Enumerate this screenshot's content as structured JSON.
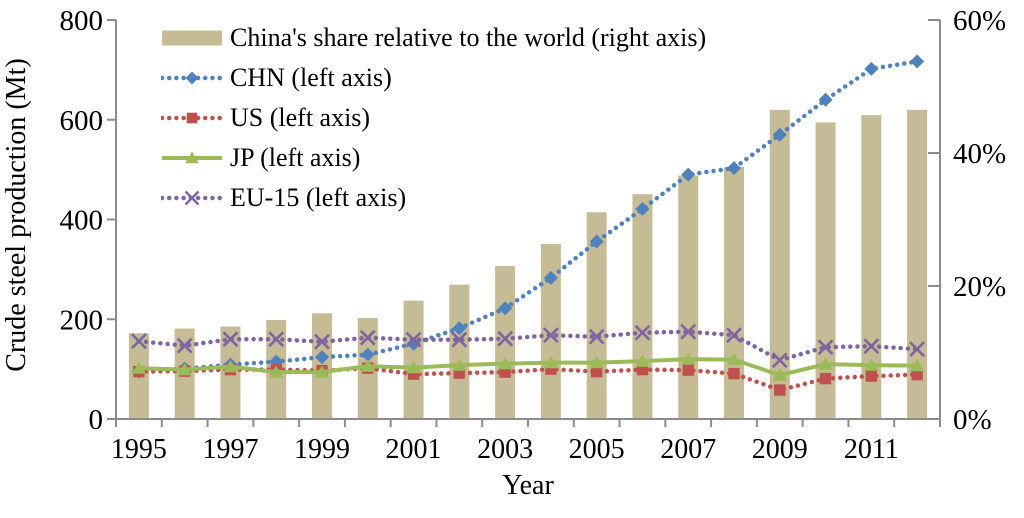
{
  "chart_data": {
    "type": "combo-bar-line",
    "title": "",
    "xlabel": "Year",
    "categories": [
      "1995",
      "1996",
      "1997",
      "1998",
      "1999",
      "2000",
      "2001",
      "2002",
      "2003",
      "2004",
      "2005",
      "2006",
      "2007",
      "2008",
      "2009",
      "2010",
      "2011",
      "2012"
    ],
    "x_label_every": 2,
    "left_axis": {
      "label": "Crude steel production (Mt)",
      "range": [
        0,
        800
      ],
      "ticks": [
        {
          "v": 0,
          "label": "0"
        },
        {
          "v": 200,
          "label": "200"
        },
        {
          "v": 400,
          "label": "400"
        },
        {
          "v": 600,
          "label": "600"
        },
        {
          "v": 800,
          "label": "800"
        }
      ]
    },
    "right_axis": {
      "label": "",
      "range": [
        0,
        60
      ],
      "ticks": [
        {
          "v": 0,
          "label": "0%"
        },
        {
          "v": 20,
          "label": "20%"
        },
        {
          "v": 40,
          "label": "40%"
        },
        {
          "v": 60,
          "label": "60%"
        }
      ]
    },
    "bar_series": {
      "name": "China's share relative to the world (right axis)",
      "axis": "right",
      "color": "#C5BC95",
      "values": [
        12.9,
        13.6,
        13.9,
        14.9,
        15.9,
        15.2,
        17.8,
        20.2,
        23.0,
        26.3,
        31.1,
        33.8,
        36.6,
        37.9,
        46.5,
        44.6,
        45.7,
        46.5
      ]
    },
    "line_series": [
      {
        "name": "CHN (left axis)",
        "axis": "left",
        "color": "#4F81BD",
        "marker": "diamond",
        "line": "dotted",
        "values": [
          95,
          101,
          109,
          115,
          124,
          129,
          151,
          182,
          222,
          283,
          356,
          421,
          490,
          503,
          570,
          640,
          702,
          717
        ]
      },
      {
        "name": "US (left axis)",
        "axis": "left",
        "color": "#C0504D",
        "marker": "square",
        "line": "dotted",
        "values": [
          95,
          96,
          99,
          99,
          97,
          102,
          90,
          92,
          94,
          100,
          95,
          99,
          98,
          91,
          58,
          81,
          86,
          89
        ]
      },
      {
        "name": "JP (left axis)",
        "axis": "left",
        "color": "#9BBB59",
        "marker": "triangle",
        "line": "solid",
        "values": [
          102,
          99,
          105,
          94,
          94,
          106,
          103,
          108,
          111,
          113,
          113,
          116,
          120,
          119,
          88,
          110,
          108,
          107
        ]
      },
      {
        "name": "EU-15 (left axis)",
        "axis": "left",
        "color": "#8064A2",
        "marker": "x",
        "line": "dotted",
        "values": [
          156,
          147,
          160,
          160,
          155,
          163,
          159,
          159,
          161,
          168,
          165,
          173,
          175,
          168,
          118,
          144,
          146,
          140
        ]
      }
    ],
    "legend_position": "top-left-inside",
    "grid": "off",
    "axis_color": "#8C8C8C",
    "text_color": "#000000"
  }
}
